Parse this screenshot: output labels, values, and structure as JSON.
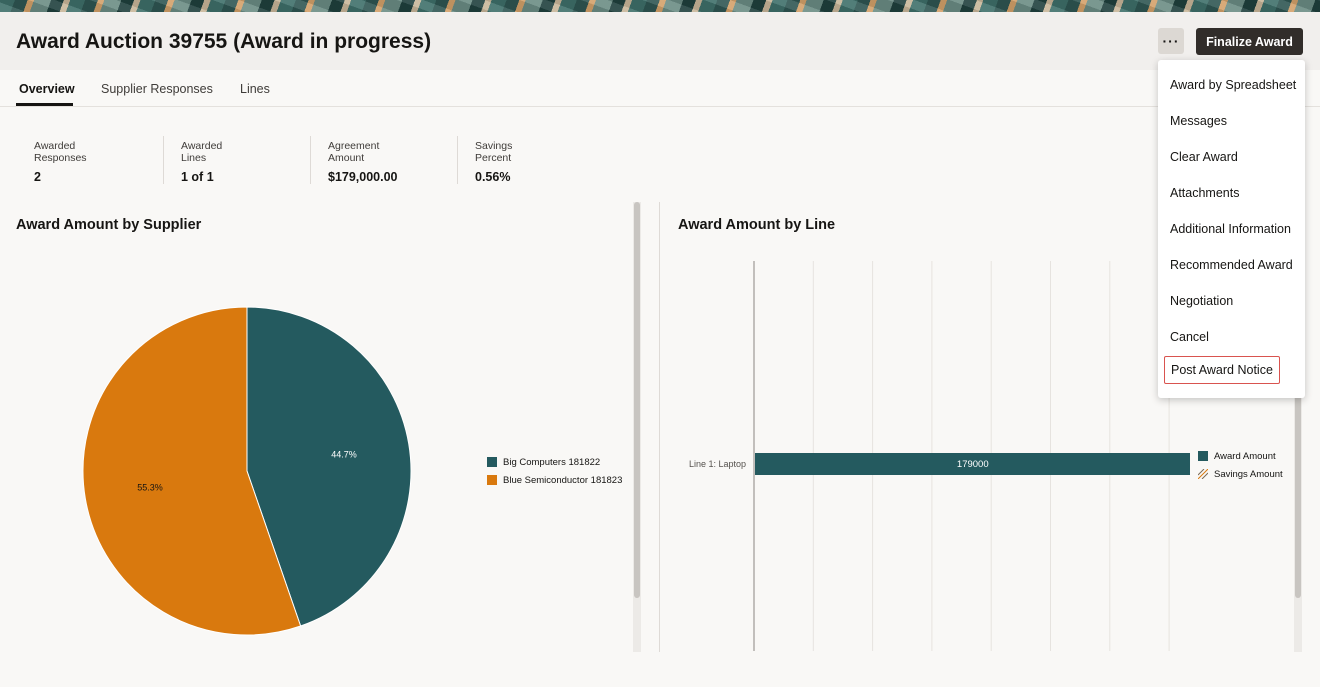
{
  "page": {
    "title": "Award Auction 39755 (Award in progress)",
    "more_label": "···",
    "finalize_label": "Finalize Award"
  },
  "tabs": [
    "Overview",
    "Supplier Responses",
    "Lines"
  ],
  "metrics": [
    {
      "label": "Awarded Responses",
      "value": "2"
    },
    {
      "label": "Awarded Lines",
      "value": "1 of 1"
    },
    {
      "label": "Agreement Amount",
      "value": "$179,000.00"
    },
    {
      "label": "Savings Percent",
      "value": "0.56%"
    }
  ],
  "menu": {
    "items": [
      "Award by Spreadsheet",
      "Messages",
      "Clear Award",
      "Attachments",
      "Additional Information",
      "Recommended Award",
      "Negotiation",
      "Cancel",
      "Post Award Notice"
    ]
  },
  "colors": {
    "teal": "#245a5f",
    "orange": "#d9790e"
  },
  "chart_data": [
    {
      "type": "pie",
      "title": "Award Amount by Supplier",
      "slices": [
        {
          "label": "Big Computers 181822",
          "percent": 44.7,
          "value_label": "44.7%"
        },
        {
          "label": "Blue Semiconductor 181823",
          "percent": 55.3,
          "value_label": "55.3%"
        }
      ],
      "legend_position": "right"
    },
    {
      "type": "bar",
      "orientation": "horizontal",
      "title": "Award Amount by Line",
      "categories": [
        "Line 1: Laptop"
      ],
      "series": [
        {
          "name": "Award Amount",
          "values": [
            179000
          ],
          "value_labels": [
            "179000"
          ]
        },
        {
          "name": "Savings Amount",
          "values": [
            1000
          ]
        }
      ],
      "xlim": [
        0,
        180000
      ],
      "grid": true,
      "legend_position": "right"
    }
  ]
}
